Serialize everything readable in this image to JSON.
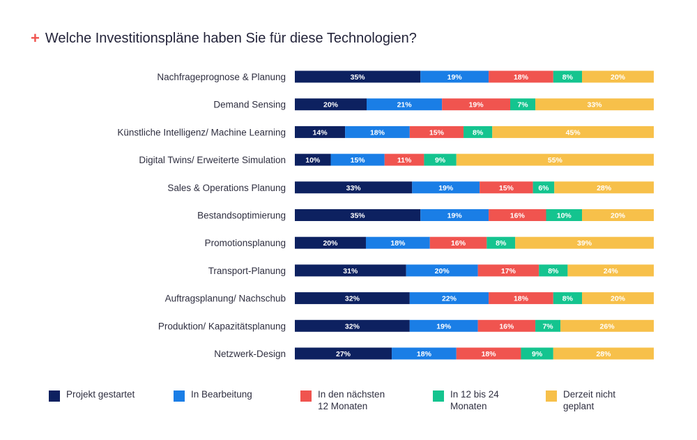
{
  "title": {
    "marker": "+",
    "text": "Welche Investitionspläne haben Sie für diese Technologien?"
  },
  "colors": {
    "accent": "#f0544f",
    "series": [
      "#0d2160",
      "#1a7ee6",
      "#f0544f",
      "#14c48f",
      "#f7c04a"
    ]
  },
  "chart_data": {
    "type": "bar",
    "orientation": "horizontal",
    "stacked": true,
    "normalized": true,
    "grid": false,
    "legend_position": "bottom",
    "categories": [
      "Nachfrageprognose & Planung",
      "Demand Sensing",
      "Künstliche Intelligenz/ Machine Learning",
      "Digital Twins/ Erweiterte Simulation",
      "Sales & Operations Planung",
      "Bestandsoptimierung",
      "Promotionsplanung",
      "Transport-Planung",
      "Auftragsplanung/ Nachschub",
      "Produktion/ Kapazitätsplanung",
      "Netzwerk-Design"
    ],
    "series": [
      {
        "name": "Projekt gestartet",
        "values": [
          35,
          20,
          14,
          10,
          33,
          35,
          20,
          31,
          32,
          32,
          27
        ]
      },
      {
        "name": "In Bearbeitung",
        "values": [
          19,
          21,
          18,
          15,
          19,
          19,
          18,
          20,
          22,
          19,
          18
        ]
      },
      {
        "name": "In den nächsten\n12 Monaten",
        "values": [
          18,
          19,
          15,
          11,
          15,
          16,
          16,
          17,
          18,
          16,
          18
        ]
      },
      {
        "name": "In 12 bis 24\nMonaten",
        "values": [
          8,
          7,
          8,
          9,
          6,
          10,
          8,
          8,
          8,
          7,
          9
        ]
      },
      {
        "name": "Derzeit nicht\ngeplant",
        "values": [
          20,
          33,
          45,
          55,
          28,
          20,
          39,
          24,
          20,
          26,
          28
        ]
      }
    ]
  }
}
